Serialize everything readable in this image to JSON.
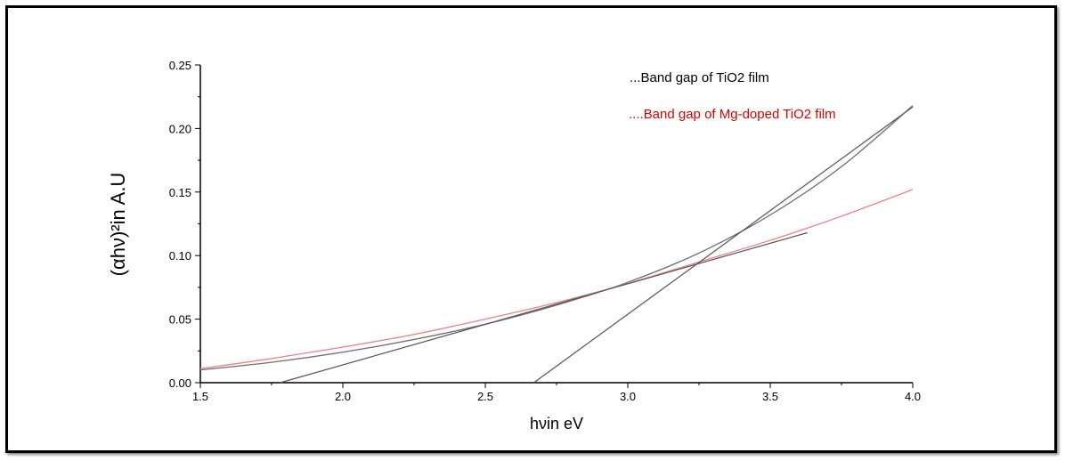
{
  "chart_data": {
    "type": "line",
    "xlabel": "hνin eV",
    "ylabel": "(αhν)²in A.U",
    "xlim": [
      1.5,
      4.0
    ],
    "ylim": [
      0.0,
      0.25
    ],
    "xticks": [
      "1.5",
      "2.0",
      "2.5",
      "3.0",
      "3.5",
      "4.0"
    ],
    "yticks": [
      "0.00",
      "0.05",
      "0.10",
      "0.15",
      "0.20",
      "0.25"
    ],
    "grid": false,
    "legend_position": "top-right",
    "series": [
      {
        "name": "...Band gap of TiO2 film",
        "color": "#6e6e6e",
        "x": [
          1.5,
          1.75,
          2.0,
          2.25,
          2.5,
          2.75,
          3.0,
          3.25,
          3.5,
          3.75,
          4.0
        ],
        "y": [
          0.01,
          0.016,
          0.024,
          0.034,
          0.046,
          0.061,
          0.079,
          0.102,
          0.132,
          0.17,
          0.218
        ]
      },
      {
        "name": "....Band gap of Mg-doped TiO2 film",
        "color": "#f08080",
        "x": [
          1.5,
          1.75,
          2.0,
          2.25,
          2.5,
          2.75,
          3.0,
          3.25,
          3.5,
          3.75,
          4.0
        ],
        "y": [
          0.011,
          0.019,
          0.028,
          0.038,
          0.05,
          0.063,
          0.078,
          0.095,
          0.112,
          0.131,
          0.152
        ]
      }
    ],
    "tangent_lines": [
      {
        "name": "tangent-tio2-steep",
        "color": "#555555",
        "x": [
          2.67,
          4.0
        ],
        "y": [
          0.0,
          0.217
        ]
      },
      {
        "name": "tangent-tio2-shallow",
        "color": "#555555",
        "x": [
          1.78,
          3.63
        ],
        "y": [
          0.0,
          0.118
        ]
      }
    ]
  }
}
